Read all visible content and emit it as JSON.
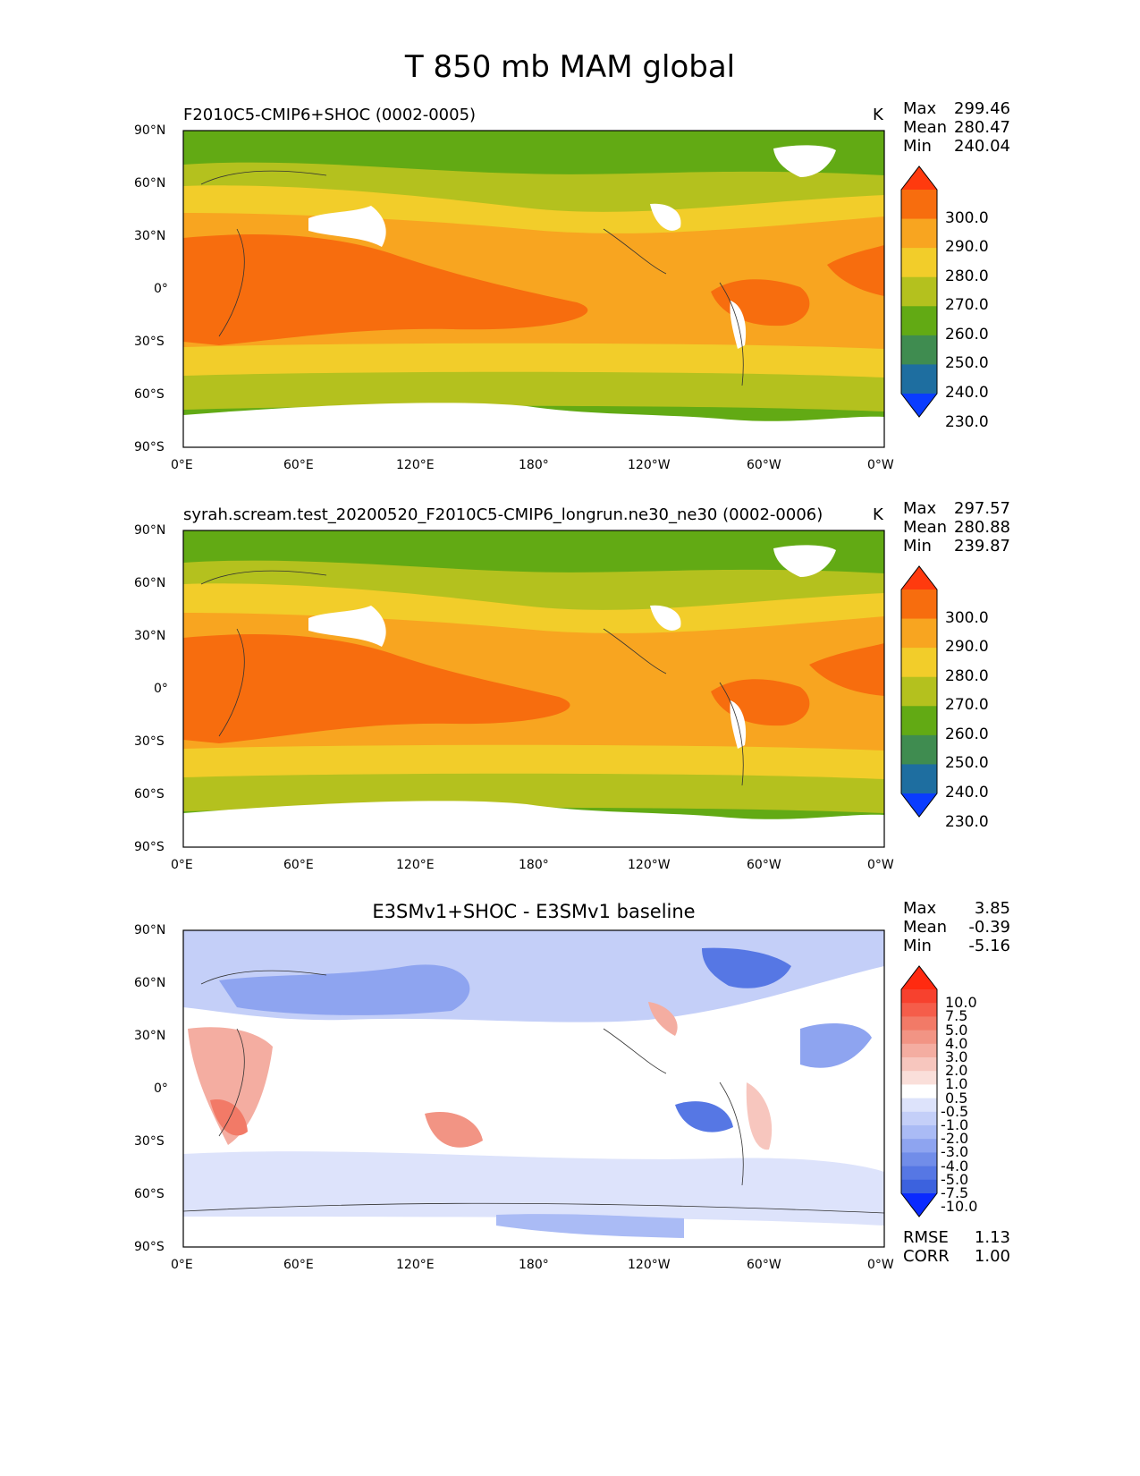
{
  "chart_data": [
    {
      "type": "heatmap",
      "figure_title": "T 850 mb MAM global",
      "title": "F2010C5-CMIP6+SHOC (0002-0005)",
      "units": "K",
      "stats": {
        "max_label": "Max",
        "max": "299.46",
        "mean_label": "Mean",
        "mean": "280.47",
        "min_label": "Min",
        "min": "240.04"
      },
      "lat_ticks": [
        "90°N",
        "60°N",
        "30°N",
        "0°",
        "30°S",
        "60°S",
        "90°S"
      ],
      "lon_ticks": [
        "0°E",
        "60°E",
        "120°E",
        "180°",
        "120°W",
        "60°W",
        "0°W"
      ],
      "colorbar": {
        "levels": [
          "300.0",
          "290.0",
          "280.0",
          "270.0",
          "260.0",
          "250.0",
          "240.0",
          "230.0"
        ],
        "colors": [
          "#ff3a0e",
          "#f76d0e",
          "#f8a520",
          "#f2cd2a",
          "#b4c11e",
          "#62aa14",
          "#3f8c50",
          "#1e6ea0",
          "#0a3cff"
        ]
      },
      "colors": {
        "band_north": "#62aa14",
        "band_mid": "#b4c11e",
        "band_yellow": "#f2cd2a",
        "band_orange": "#f8a520",
        "band_deep": "#f76d0e",
        "antarctic": "#62aa14",
        "missing": "#ffffff"
      }
    },
    {
      "type": "heatmap",
      "title": "syrah.scream.test_20200520_F2010C5-CMIP6_longrun.ne30_ne30 (0002-0006)",
      "units": "K",
      "stats": {
        "max_label": "Max",
        "max": "297.57",
        "mean_label": "Mean",
        "mean": "280.88",
        "min_label": "Min",
        "min": "239.87"
      },
      "lat_ticks": [
        "90°N",
        "60°N",
        "30°N",
        "0°",
        "30°S",
        "60°S",
        "90°S"
      ],
      "lon_ticks": [
        "0°E",
        "60°E",
        "120°E",
        "180°",
        "120°W",
        "60°W",
        "0°W"
      ],
      "colorbar": {
        "levels": [
          "300.0",
          "290.0",
          "280.0",
          "270.0",
          "260.0",
          "250.0",
          "240.0",
          "230.0"
        ],
        "colors": [
          "#ff3a0e",
          "#f76d0e",
          "#f8a520",
          "#f2cd2a",
          "#b4c11e",
          "#62aa14",
          "#3f8c50",
          "#1e6ea0",
          "#0a3cff"
        ]
      }
    },
    {
      "type": "heatmap",
      "title": "E3SMv1+SHOC - E3SMv1 baseline",
      "units": "",
      "stats": {
        "max_label": "Max",
        "max": "3.85",
        "mean_label": "Mean",
        "mean": "-0.39",
        "min_label": "Min",
        "min": "-5.16",
        "rmse_label": "RMSE",
        "rmse": "1.13",
        "corr_label": "CORR",
        "corr": "1.00"
      },
      "lat_ticks": [
        "90°N",
        "60°N",
        "30°N",
        "0°",
        "30°S",
        "60°S",
        "90°S"
      ],
      "lon_ticks": [
        "0°E",
        "60°E",
        "120°E",
        "180°",
        "120°W",
        "60°W",
        "0°W"
      ],
      "colorbar": {
        "levels": [
          "10.0",
          "7.5",
          "5.0",
          "4.0",
          "3.0",
          "2.0",
          "1.0",
          "0.5",
          "-0.5",
          "-1.0",
          "-2.0",
          "-3.0",
          "-4.0",
          "-5.0",
          "-7.5",
          "-10.0"
        ],
        "colors": [
          "#ff2a10",
          "#f7412e",
          "#f55d4a",
          "#f27a67",
          "#f29484",
          "#f4ada1",
          "#f7c6be",
          "#fadfda",
          "#ffffff",
          "#dde3fb",
          "#c4cff8",
          "#aabbf5",
          "#8ea4f0",
          "#718de9",
          "#5677e4",
          "#3c62de",
          "#0a2aff"
        ]
      }
    }
  ]
}
